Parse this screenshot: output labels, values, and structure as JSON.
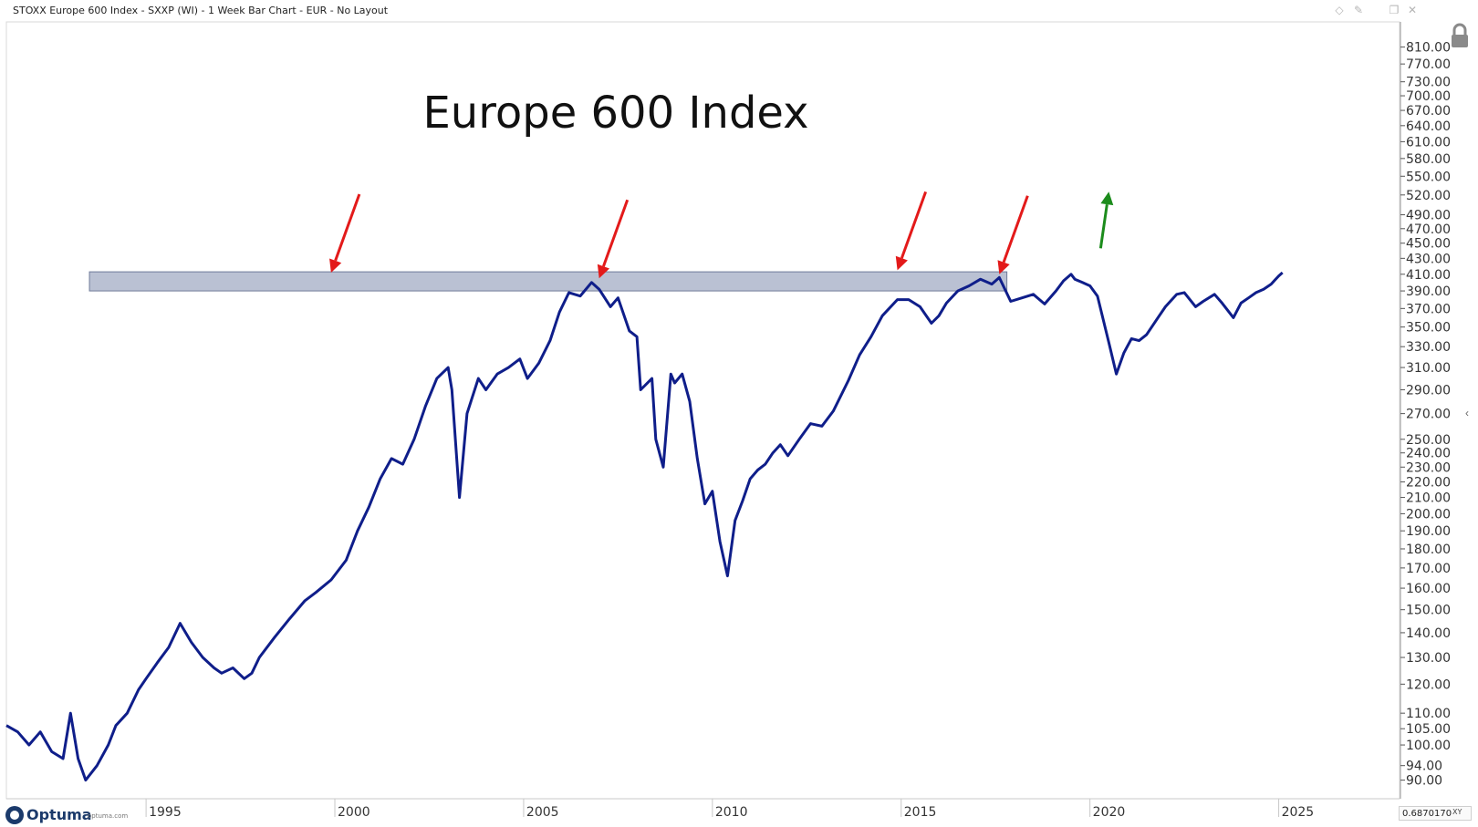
{
  "window": {
    "title": "STOXX Europe 600 Index - SXXP (WI) - 1 Week Bar Chart - EUR - No Layout",
    "edit_icon": "pencil-icon",
    "buttons": [
      "diamond-icon",
      "pin-icon",
      "restore-icon",
      "close-icon"
    ]
  },
  "footer": {
    "brand_name": "Optuma",
    "brand_url": "optuma.com",
    "zoom_value": "0.6870170",
    "xy_label": "XY"
  },
  "colors": {
    "price_line": "#0f1e8a",
    "resistance_band_fill": "#a9b2c8",
    "resistance_band_stroke": "#6f7b99",
    "down_arrow": "#e31a1a",
    "up_arrow": "#1c8c1c",
    "title_text": "#111111"
  },
  "chart_data": {
    "type": "line",
    "title": "Europe 600 Index",
    "xlabel": "",
    "ylabel": "",
    "y_scale": "log",
    "xlim": [
      1991.3,
      2028.2
    ],
    "ylim": [
      87,
      850
    ],
    "x_ticks": [
      1995,
      2000,
      2005,
      2010,
      2015,
      2020,
      2025
    ],
    "x_tick_labels": [
      "1995",
      "2000",
      "2005",
      "2010",
      "2015",
      "2020",
      "2025"
    ],
    "y_ticks": [
      90,
      94,
      100,
      105,
      110,
      120,
      130,
      140,
      150,
      160,
      170,
      180,
      190,
      200,
      210,
      220,
      230,
      240,
      250,
      270,
      290,
      310,
      330,
      350,
      370,
      390,
      410,
      430,
      450,
      470,
      490,
      520,
      550,
      580,
      610,
      640,
      670,
      700,
      730,
      770,
      810
    ],
    "y_tick_labels": [
      "90.00",
      "94.00",
      "100.00",
      "105.00",
      "110.00",
      "120.00",
      "130.00",
      "140.00",
      "150.00",
      "160.00",
      "170.00",
      "180.00",
      "190.00",
      "200.00",
      "210.00",
      "220.00",
      "230.00",
      "240.00",
      "250.00",
      "270.00",
      "290.00",
      "310.00",
      "330.00",
      "350.00",
      "370.00",
      "390.00",
      "410.00",
      "430.00",
      "450.00",
      "470.00",
      "490.00",
      "520.00",
      "550.00",
      "580.00",
      "610.00",
      "640.00",
      "670.00",
      "700.00",
      "730.00",
      "770.00",
      "810.00"
    ],
    "grid": false,
    "series": [
      {
        "values": [
          [
            1991.3,
            106
          ],
          [
            1991.6,
            104
          ],
          [
            1991.9,
            100
          ],
          [
            1992.2,
            104
          ],
          [
            1992.5,
            98
          ],
          [
            1992.8,
            96
          ],
          [
            1993.0,
            110
          ],
          [
            1993.2,
            96
          ],
          [
            1993.4,
            90
          ],
          [
            1993.7,
            94
          ],
          [
            1994.0,
            100
          ],
          [
            1994.2,
            106
          ],
          [
            1994.5,
            110
          ],
          [
            1994.8,
            118
          ],
          [
            1995.0,
            122
          ],
          [
            1995.3,
            128
          ],
          [
            1995.6,
            134
          ],
          [
            1995.9,
            144
          ],
          [
            1996.2,
            136
          ],
          [
            1996.5,
            130
          ],
          [
            1996.8,
            126
          ],
          [
            1997.0,
            124
          ],
          [
            1997.3,
            126
          ],
          [
            1997.6,
            122
          ],
          [
            1997.8,
            124
          ],
          [
            1998.0,
            130
          ],
          [
            1998.4,
            138
          ],
          [
            1998.8,
            146
          ],
          [
            1999.2,
            154
          ],
          [
            1999.5,
            158
          ],
          [
            1999.9,
            164
          ],
          [
            2000.3,
            174
          ],
          [
            2000.6,
            190
          ],
          [
            2000.9,
            204
          ],
          [
            2001.2,
            222
          ],
          [
            2001.5,
            236
          ],
          [
            2001.8,
            232
          ],
          [
            2002.1,
            250
          ],
          [
            2002.4,
            276
          ],
          [
            2002.7,
            300
          ],
          [
            2003.0,
            310
          ],
          [
            2003.1,
            290
          ],
          [
            2003.3,
            210
          ],
          [
            2003.5,
            270
          ],
          [
            2003.8,
            300
          ],
          [
            2004.0,
            290
          ],
          [
            2004.3,
            304
          ],
          [
            2004.6,
            310
          ],
          [
            2004.9,
            318
          ],
          [
            2005.1,
            300
          ],
          [
            2005.4,
            314
          ],
          [
            2005.7,
            336
          ],
          [
            2005.95,
            366
          ],
          [
            2006.2,
            388
          ],
          [
            2006.5,
            384
          ],
          [
            2006.8,
            400
          ],
          [
            2007.0,
            392
          ],
          [
            2007.3,
            372
          ],
          [
            2007.5,
            382
          ],
          [
            2007.8,
            346
          ],
          [
            2008.0,
            340
          ],
          [
            2008.1,
            290
          ],
          [
            2008.4,
            300
          ],
          [
            2008.5,
            250
          ],
          [
            2008.7,
            230
          ],
          [
            2008.9,
            304
          ],
          [
            2009.0,
            296
          ],
          [
            2009.2,
            304
          ],
          [
            2009.4,
            280
          ],
          [
            2009.6,
            236
          ],
          [
            2009.8,
            206
          ],
          [
            2010.0,
            214
          ],
          [
            2010.2,
            184
          ],
          [
            2010.4,
            166
          ],
          [
            2010.6,
            196
          ],
          [
            2010.8,
            208
          ],
          [
            2011.0,
            222
          ],
          [
            2011.2,
            228
          ],
          [
            2011.4,
            232
          ],
          [
            2011.6,
            240
          ],
          [
            2011.8,
            246
          ],
          [
            2012.0,
            238
          ],
          [
            2012.3,
            250
          ],
          [
            2012.6,
            262
          ],
          [
            2012.9,
            260
          ],
          [
            2013.2,
            272
          ],
          [
            2013.6,
            298
          ],
          [
            2013.9,
            322
          ],
          [
            2014.2,
            340
          ],
          [
            2014.5,
            362
          ],
          [
            2014.9,
            380
          ],
          [
            2015.2,
            380
          ],
          [
            2015.5,
            372
          ],
          [
            2015.8,
            354
          ],
          [
            2016.0,
            362
          ],
          [
            2016.2,
            376
          ],
          [
            2016.5,
            390
          ],
          [
            2016.8,
            396
          ],
          [
            2017.1,
            404
          ],
          [
            2017.4,
            398
          ],
          [
            2017.6,
            406
          ],
          [
            2017.9,
            378
          ],
          [
            2018.2,
            382
          ],
          [
            2018.5,
            386
          ],
          [
            2018.8,
            375
          ],
          [
            2019.1,
            390
          ],
          [
            2019.3,
            402
          ],
          [
            2019.5,
            410
          ],
          [
            2019.6,
            404
          ],
          [
            2019.8,
            400
          ],
          [
            2020.0,
            396
          ],
          [
            2020.2,
            384
          ],
          [
            2020.5,
            334
          ],
          [
            2020.7,
            304
          ],
          [
            2020.9,
            324
          ],
          [
            2021.1,
            338
          ],
          [
            2021.3,
            336
          ],
          [
            2021.5,
            342
          ],
          [
            2021.8,
            360
          ],
          [
            2022.0,
            372
          ],
          [
            2022.3,
            386
          ],
          [
            2022.5,
            388
          ],
          [
            2022.8,
            372
          ],
          [
            2023.0,
            378
          ],
          [
            2023.3,
            386
          ],
          [
            2023.5,
            376
          ],
          [
            2023.8,
            360
          ],
          [
            2024.0,
            376
          ],
          [
            2024.2,
            382
          ],
          [
            2024.4,
            388
          ],
          [
            2024.6,
            392
          ],
          [
            2024.8,
            398
          ],
          [
            2025.0,
            408
          ],
          [
            2025.1,
            412
          ]
        ]
      }
    ],
    "resistance_band": {
      "x_start": 1993.5,
      "x_end": 2017.8,
      "y_low": 390,
      "y_high": 413
    },
    "annotations": [
      {
        "type": "down-arrow",
        "x": 1999.9,
        "y": 412
      },
      {
        "type": "down-arrow",
        "x": 2007.0,
        "y": 405
      },
      {
        "type": "down-arrow",
        "x": 2014.9,
        "y": 415
      },
      {
        "type": "down-arrow",
        "x": 2017.6,
        "y": 410
      },
      {
        "type": "up-arrow",
        "x": 2020.5,
        "y": 525
      }
    ]
  }
}
